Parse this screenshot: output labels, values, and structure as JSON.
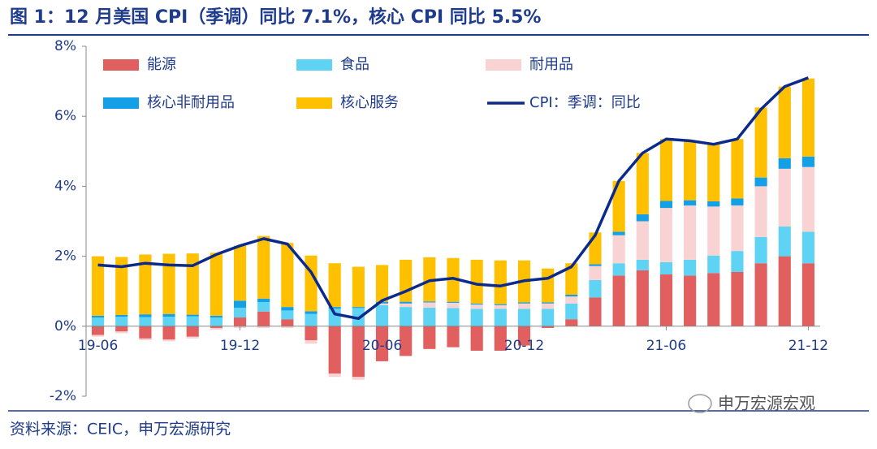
{
  "title": "图 1：12 月美国 CPI（季调）同比 7.1%，核心 CPI 同比 5.5%",
  "source": "资料来源：CEIC，申万宏源研究",
  "watermark": "申万宏源宏观",
  "chart_data": {
    "type": "bar",
    "stacked": true,
    "categories": [
      "19-06",
      null,
      null,
      null,
      null,
      null,
      "19-12",
      null,
      null,
      null,
      null,
      null,
      "20-06",
      null,
      null,
      null,
      null,
      null,
      "20-12",
      null,
      null,
      null,
      null,
      null,
      "21-06",
      null,
      null,
      null,
      null,
      null,
      "21-12"
    ],
    "series": [
      {
        "name": "能源",
        "color": "#e15f5f",
        "values": [
          -0.25,
          -0.15,
          -0.35,
          -0.38,
          -0.3,
          -0.05,
          0.25,
          0.42,
          0.2,
          -0.4,
          -1.35,
          -1.45,
          -1.0,
          -0.85,
          -0.65,
          -0.6,
          -0.7,
          -0.7,
          -0.55,
          -0.05,
          0.2,
          0.82,
          1.45,
          1.6,
          1.48,
          1.45,
          1.52,
          1.55,
          1.8,
          2.0,
          1.8
        ]
      },
      {
        "name": "食品",
        "color": "#5fd3f3",
        "values": [
          0.25,
          0.27,
          0.26,
          0.27,
          0.28,
          0.25,
          0.28,
          0.27,
          0.25,
          0.35,
          0.5,
          0.52,
          0.6,
          0.55,
          0.53,
          0.52,
          0.5,
          0.5,
          0.5,
          0.5,
          0.45,
          0.5,
          0.35,
          0.3,
          0.35,
          0.45,
          0.5,
          0.6,
          0.75,
          0.85,
          0.9
        ]
      },
      {
        "name": "耐用品",
        "color": "#f9d3d3",
        "values": [
          -0.05,
          -0.05,
          -0.05,
          -0.05,
          -0.05,
          -0.05,
          -0.05,
          -0.05,
          -0.05,
          -0.1,
          -0.1,
          -0.08,
          0.05,
          0.1,
          0.15,
          0.15,
          0.12,
          0.1,
          0.15,
          0.15,
          0.2,
          0.4,
          0.8,
          1.1,
          1.55,
          1.55,
          1.4,
          1.3,
          1.45,
          1.65,
          1.85
        ]
      },
      {
        "name": "核心非耐用品",
        "color": "#14a0e6",
        "values": [
          0.05,
          0.05,
          0.08,
          0.08,
          0.05,
          0.05,
          0.2,
          0.1,
          0.1,
          0.08,
          0.05,
          0.03,
          0.05,
          0.05,
          0.03,
          0.03,
          0.03,
          0.03,
          0.03,
          0.03,
          0.05,
          0.05,
          0.1,
          0.2,
          0.2,
          0.15,
          0.15,
          0.2,
          0.25,
          0.3,
          0.3
        ]
      },
      {
        "name": "核心服务",
        "color": "#ffc000",
        "values": [
          1.7,
          1.66,
          1.71,
          1.72,
          1.75,
          1.8,
          1.57,
          1.79,
          1.83,
          1.59,
          1.25,
          1.15,
          1.05,
          1.2,
          1.26,
          1.25,
          1.25,
          1.25,
          1.2,
          0.97,
          0.9,
          0.91,
          1.45,
          1.75,
          1.77,
          1.7,
          1.63,
          1.7,
          2.0,
          2.05,
          2.23
        ]
      },
      {
        "name": "CPI：季调：同比",
        "color": "#0c2a8c",
        "type": "line",
        "values": [
          1.75,
          1.7,
          1.8,
          1.75,
          1.73,
          2.05,
          2.3,
          2.5,
          2.35,
          1.55,
          0.35,
          0.22,
          0.73,
          1.0,
          1.3,
          1.37,
          1.2,
          1.15,
          1.3,
          1.37,
          1.7,
          2.6,
          4.15,
          4.95,
          5.35,
          5.3,
          5.2,
          5.35,
          6.2,
          6.85,
          7.1
        ]
      }
    ],
    "ylim": [
      -2,
      8
    ],
    "yticks": [
      {
        "value": -2,
        "label": "-2%"
      },
      {
        "value": 0,
        "label": "0%"
      },
      {
        "value": 2,
        "label": "2%"
      },
      {
        "value": 4,
        "label": "4%"
      },
      {
        "value": 6,
        "label": "6%"
      },
      {
        "value": 8,
        "label": "8%"
      }
    ],
    "grid": false
  }
}
